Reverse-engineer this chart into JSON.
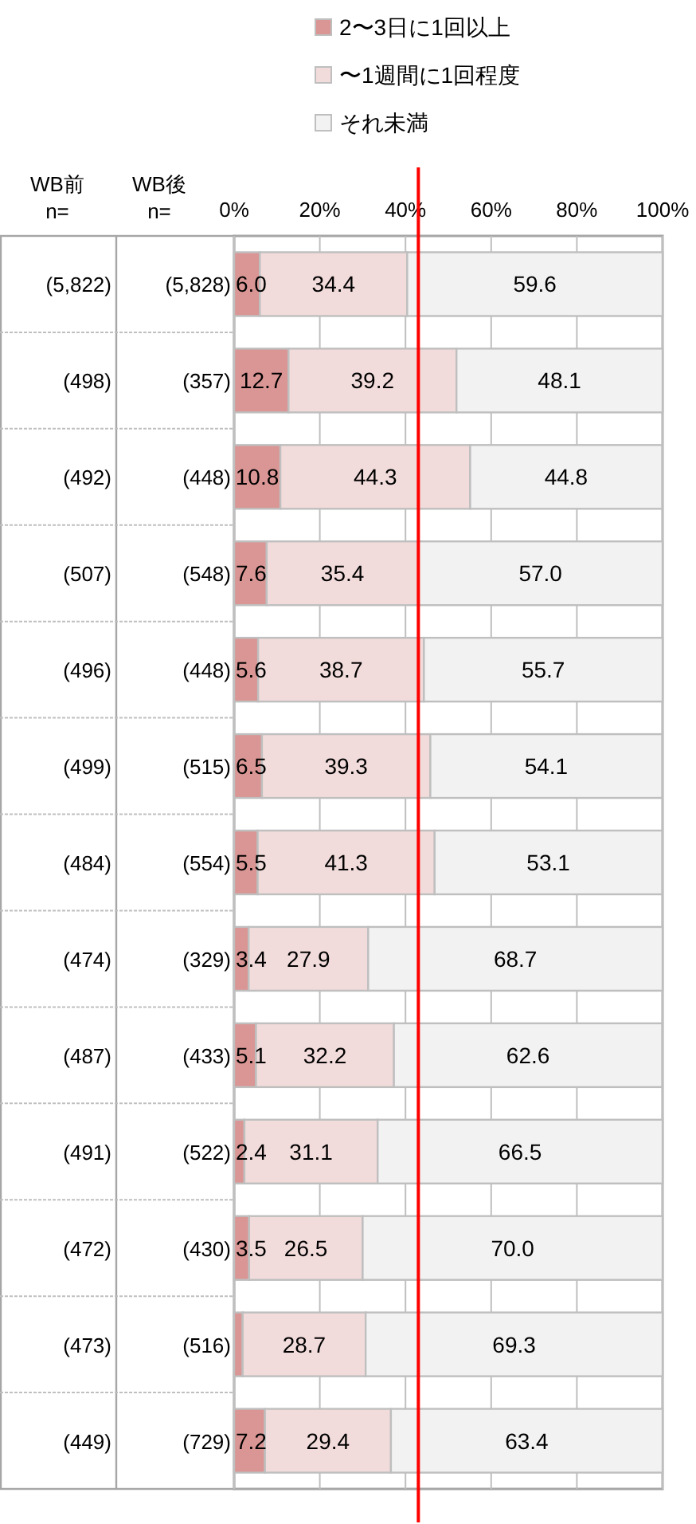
{
  "chart_data": {
    "type": "bar",
    "orientation": "horizontal",
    "stacked": true,
    "ylabel": "WB前\nn=",
    "y2label": "WB後\nn=",
    "categories": [
      "(5,822)",
      "(498)",
      "(492)",
      "(507)",
      "(496)",
      "(499)",
      "(484)",
      "(474)",
      "(487)",
      "(491)",
      "(472)",
      "(473)",
      "(449)"
    ],
    "y2_categories": [
      "(5,828)",
      "(357)",
      "(448)",
      "(548)",
      "(448)",
      "(515)",
      "(554)",
      "(329)",
      "(433)",
      "(522)",
      "(430)",
      "(516)",
      "(729)"
    ],
    "series": [
      {
        "name": "2〜3日に1回以上",
        "color": "#d99694",
        "values": [
          6.0,
          12.7,
          10.8,
          7.6,
          5.6,
          6.5,
          5.5,
          3.4,
          5.1,
          2.4,
          3.5,
          2.0,
          7.2
        ],
        "value_labels": [
          "6.0",
          "12.7",
          "10.8",
          "7.6",
          "5.6",
          "6.5",
          "5.5",
          "3.4",
          "5.1",
          "2.4",
          "3.5",
          null,
          "7.2"
        ]
      },
      {
        "name": "〜1週間に1回程度",
        "color": "#f2dcdb",
        "values": [
          34.4,
          39.2,
          44.3,
          35.4,
          38.7,
          39.3,
          41.3,
          27.9,
          32.2,
          31.1,
          26.5,
          28.7,
          29.4
        ],
        "value_labels": [
          "34.4",
          "39.2",
          "44.3",
          "35.4",
          "38.7",
          "39.3",
          "41.3",
          "27.9",
          "32.2",
          "31.1",
          "26.5",
          "28.7",
          "29.4"
        ]
      },
      {
        "name": "それ未満",
        "color": "#f2f2f2",
        "values": [
          59.6,
          48.1,
          44.8,
          57.0,
          55.7,
          54.1,
          53.1,
          68.7,
          62.6,
          66.5,
          70.0,
          69.3,
          63.4
        ],
        "value_labels": [
          "59.6",
          "48.1",
          "44.8",
          "57.0",
          "55.7",
          "54.1",
          "53.1",
          "68.7",
          "62.6",
          "66.5",
          "70.0",
          "69.3",
          "63.4"
        ]
      }
    ],
    "xlim": [
      0,
      100
    ],
    "xticks": [
      {
        "value": 0,
        "label": "0%"
      },
      {
        "value": 20,
        "label": "20%"
      },
      {
        "value": 40,
        "label": "40%"
      },
      {
        "value": 60,
        "label": "60%"
      },
      {
        "value": 80,
        "label": "80%"
      },
      {
        "value": 100,
        "label": "100%"
      }
    ],
    "ref_lines": [
      {
        "axis": "x",
        "value": 43,
        "color": "#ff0000"
      }
    ],
    "grid": "x",
    "legend": "top"
  }
}
